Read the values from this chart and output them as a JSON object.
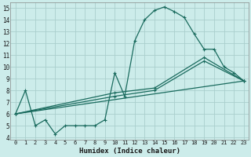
{
  "xlabel": "Humidex (Indice chaleur)",
  "xlim": [
    -0.5,
    23.5
  ],
  "ylim": [
    3.8,
    15.5
  ],
  "yticks": [
    4,
    5,
    6,
    7,
    8,
    9,
    10,
    11,
    12,
    13,
    14,
    15
  ],
  "xticks": [
    0,
    1,
    2,
    3,
    4,
    5,
    6,
    7,
    8,
    9,
    10,
    11,
    12,
    13,
    14,
    15,
    16,
    17,
    18,
    19,
    20,
    21,
    22,
    23
  ],
  "bg_color": "#ccecea",
  "grid_color": "#aacfcd",
  "line_color": "#1a6b5e",
  "line1_x": [
    0,
    1,
    2,
    3,
    4,
    5,
    6,
    7,
    8,
    9,
    10,
    11,
    12,
    13,
    14,
    15,
    16,
    17,
    18,
    19,
    20,
    21,
    22,
    23
  ],
  "line1_y": [
    6.0,
    8.0,
    5.0,
    5.5,
    4.3,
    5.0,
    5.0,
    5.0,
    5.0,
    5.5,
    9.5,
    7.5,
    12.2,
    14.0,
    14.8,
    15.1,
    14.7,
    14.2,
    12.8,
    11.5,
    11.5,
    10.0,
    9.5,
    8.8
  ],
  "line2_x": [
    0,
    10,
    14,
    19,
    23
  ],
  "line2_y": [
    6.0,
    7.8,
    8.2,
    10.8,
    8.8
  ],
  "line3_x": [
    0,
    10,
    14,
    19,
    23
  ],
  "line3_y": [
    6.0,
    7.5,
    8.0,
    10.5,
    8.8
  ],
  "line4_x": [
    0,
    23
  ],
  "line4_y": [
    6.0,
    8.8
  ]
}
